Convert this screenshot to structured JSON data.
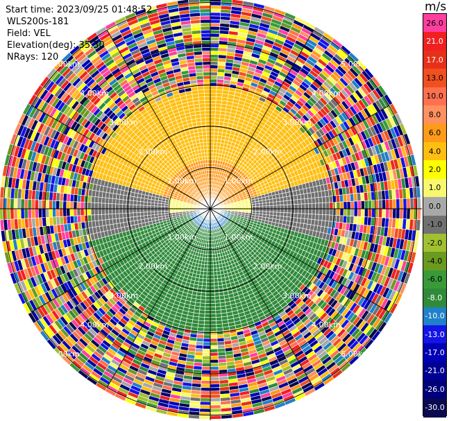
{
  "header": {
    "start_time": "Start time: 2023/09/25 01:48:52",
    "instrument": "WLS200s-181",
    "field": "Field: VEL",
    "elevation": "Elevation(deg): 35.30",
    "nrays": "NRays: 120"
  },
  "chart_data": {
    "type": "heatmap",
    "projection": "polar PPI",
    "field": "VEL",
    "nrays": 120,
    "range_rings_km": [
      1,
      2,
      3,
      4,
      5
    ],
    "ring_labels": [
      "1.00km",
      "2.00km",
      "3.00km",
      "4.00km",
      "5.00km"
    ],
    "grid": true,
    "colorbar": {
      "unit": "m/s",
      "placement": "right",
      "levels": [
        "26.0",
        "21.0",
        "17.0",
        "13.0",
        "10.0",
        "8.0",
        "6.0",
        "4.0",
        "2.0",
        "1.0",
        "0.0",
        "-1.0",
        "-2.0",
        "-4.0",
        "-6.0",
        "-8.0",
        "-10.0",
        "-13.0",
        "-17.0",
        "-21.0",
        "-26.0",
        "-30.0"
      ],
      "colors": [
        "#ff3fa0",
        "#f02020",
        "#e83018",
        "#f05020",
        "#ff7050",
        "#ff9060",
        "#ff9a1a",
        "#ffbf10",
        "#ffff00",
        "#f8f870",
        "#a8a8a8",
        "#707070",
        "#a0c030",
        "#6a9a20",
        "#389a38",
        "#2f8a3a",
        "#2080c8",
        "#1414e6",
        "#0000b4",
        "#000094",
        "#00007a",
        "#0a0a50"
      ]
    },
    "regions": [
      {
        "range_km": [
          0,
          1.2
        ],
        "direction": "north",
        "velocity_ms": [
          6,
          8
        ]
      },
      {
        "range_km": [
          1.2,
          3.0
        ],
        "direction": "north",
        "velocity_ms": [
          4,
          6
        ]
      },
      {
        "range_km": [
          0,
          3.0
        ],
        "direction": "east and west",
        "velocity_ms": [
          1,
          2
        ]
      },
      {
        "range_km": [
          0.4,
          3.0
        ],
        "direction": "near horizontal",
        "velocity_ms": [
          -1,
          0
        ]
      },
      {
        "range_km": [
          0,
          0.5
        ],
        "direction": "south",
        "velocity_ms": [
          -10,
          -8
        ]
      },
      {
        "range_km": [
          0.5,
          3.0
        ],
        "direction": "south",
        "velocity_ms": [
          -8,
          -6
        ]
      },
      {
        "range_km": [
          3.0,
          6.0
        ],
        "direction": "all",
        "velocity_ms": "noise"
      }
    ]
  }
}
